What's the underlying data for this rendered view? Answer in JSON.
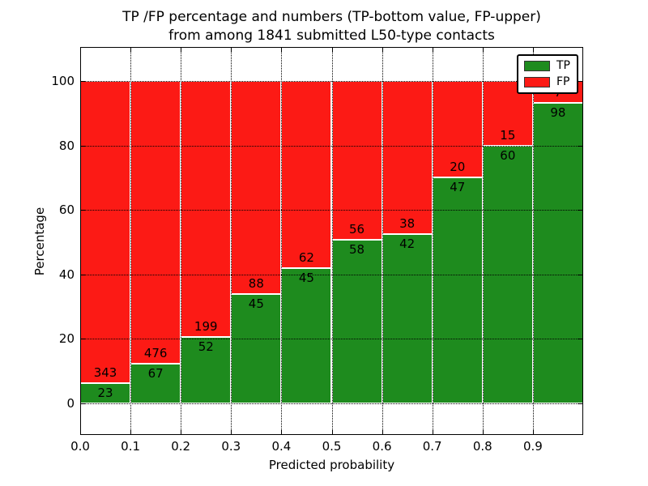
{
  "title": {
    "line1": "TP /FP percentage and numbers (TP-bottom value, FP-upper)",
    "line2": "from among 1841 submitted L50-type contacts"
  },
  "chart_data": {
    "type": "bar",
    "stacked": true,
    "normalized_to_percent": true,
    "title": "TP /FP percentage and numbers (TP-bottom value, FP-upper) from among 1841 submitted L50-type contacts",
    "xlabel": "Predicted probability",
    "ylabel": "Percentage",
    "xlim": [
      0.0,
      1.0
    ],
    "ylim": [
      -10,
      110
    ],
    "grid": true,
    "total_contacts": 1841,
    "bin_edges": [
      0.0,
      0.1,
      0.2,
      0.3,
      0.4,
      0.5,
      0.6,
      0.7,
      0.8,
      0.9,
      1.0
    ],
    "x_tick_labels": [
      "0.0",
      "0.1",
      "0.2",
      "0.3",
      "0.4",
      "0.5",
      "0.6",
      "0.7",
      "0.8",
      "0.9"
    ],
    "y_ticks": [
      0,
      20,
      40,
      60,
      80,
      100
    ],
    "legend_position": "upper right",
    "series": [
      {
        "name": "TP",
        "color": "#1e8b1e",
        "counts": [
          23,
          67,
          52,
          45,
          45,
          58,
          42,
          47,
          60,
          98
        ]
      },
      {
        "name": "FP",
        "color": "#fc1a15",
        "counts": [
          343,
          476,
          199,
          88,
          62,
          56,
          38,
          20,
          15,
          7
        ]
      }
    ]
  }
}
